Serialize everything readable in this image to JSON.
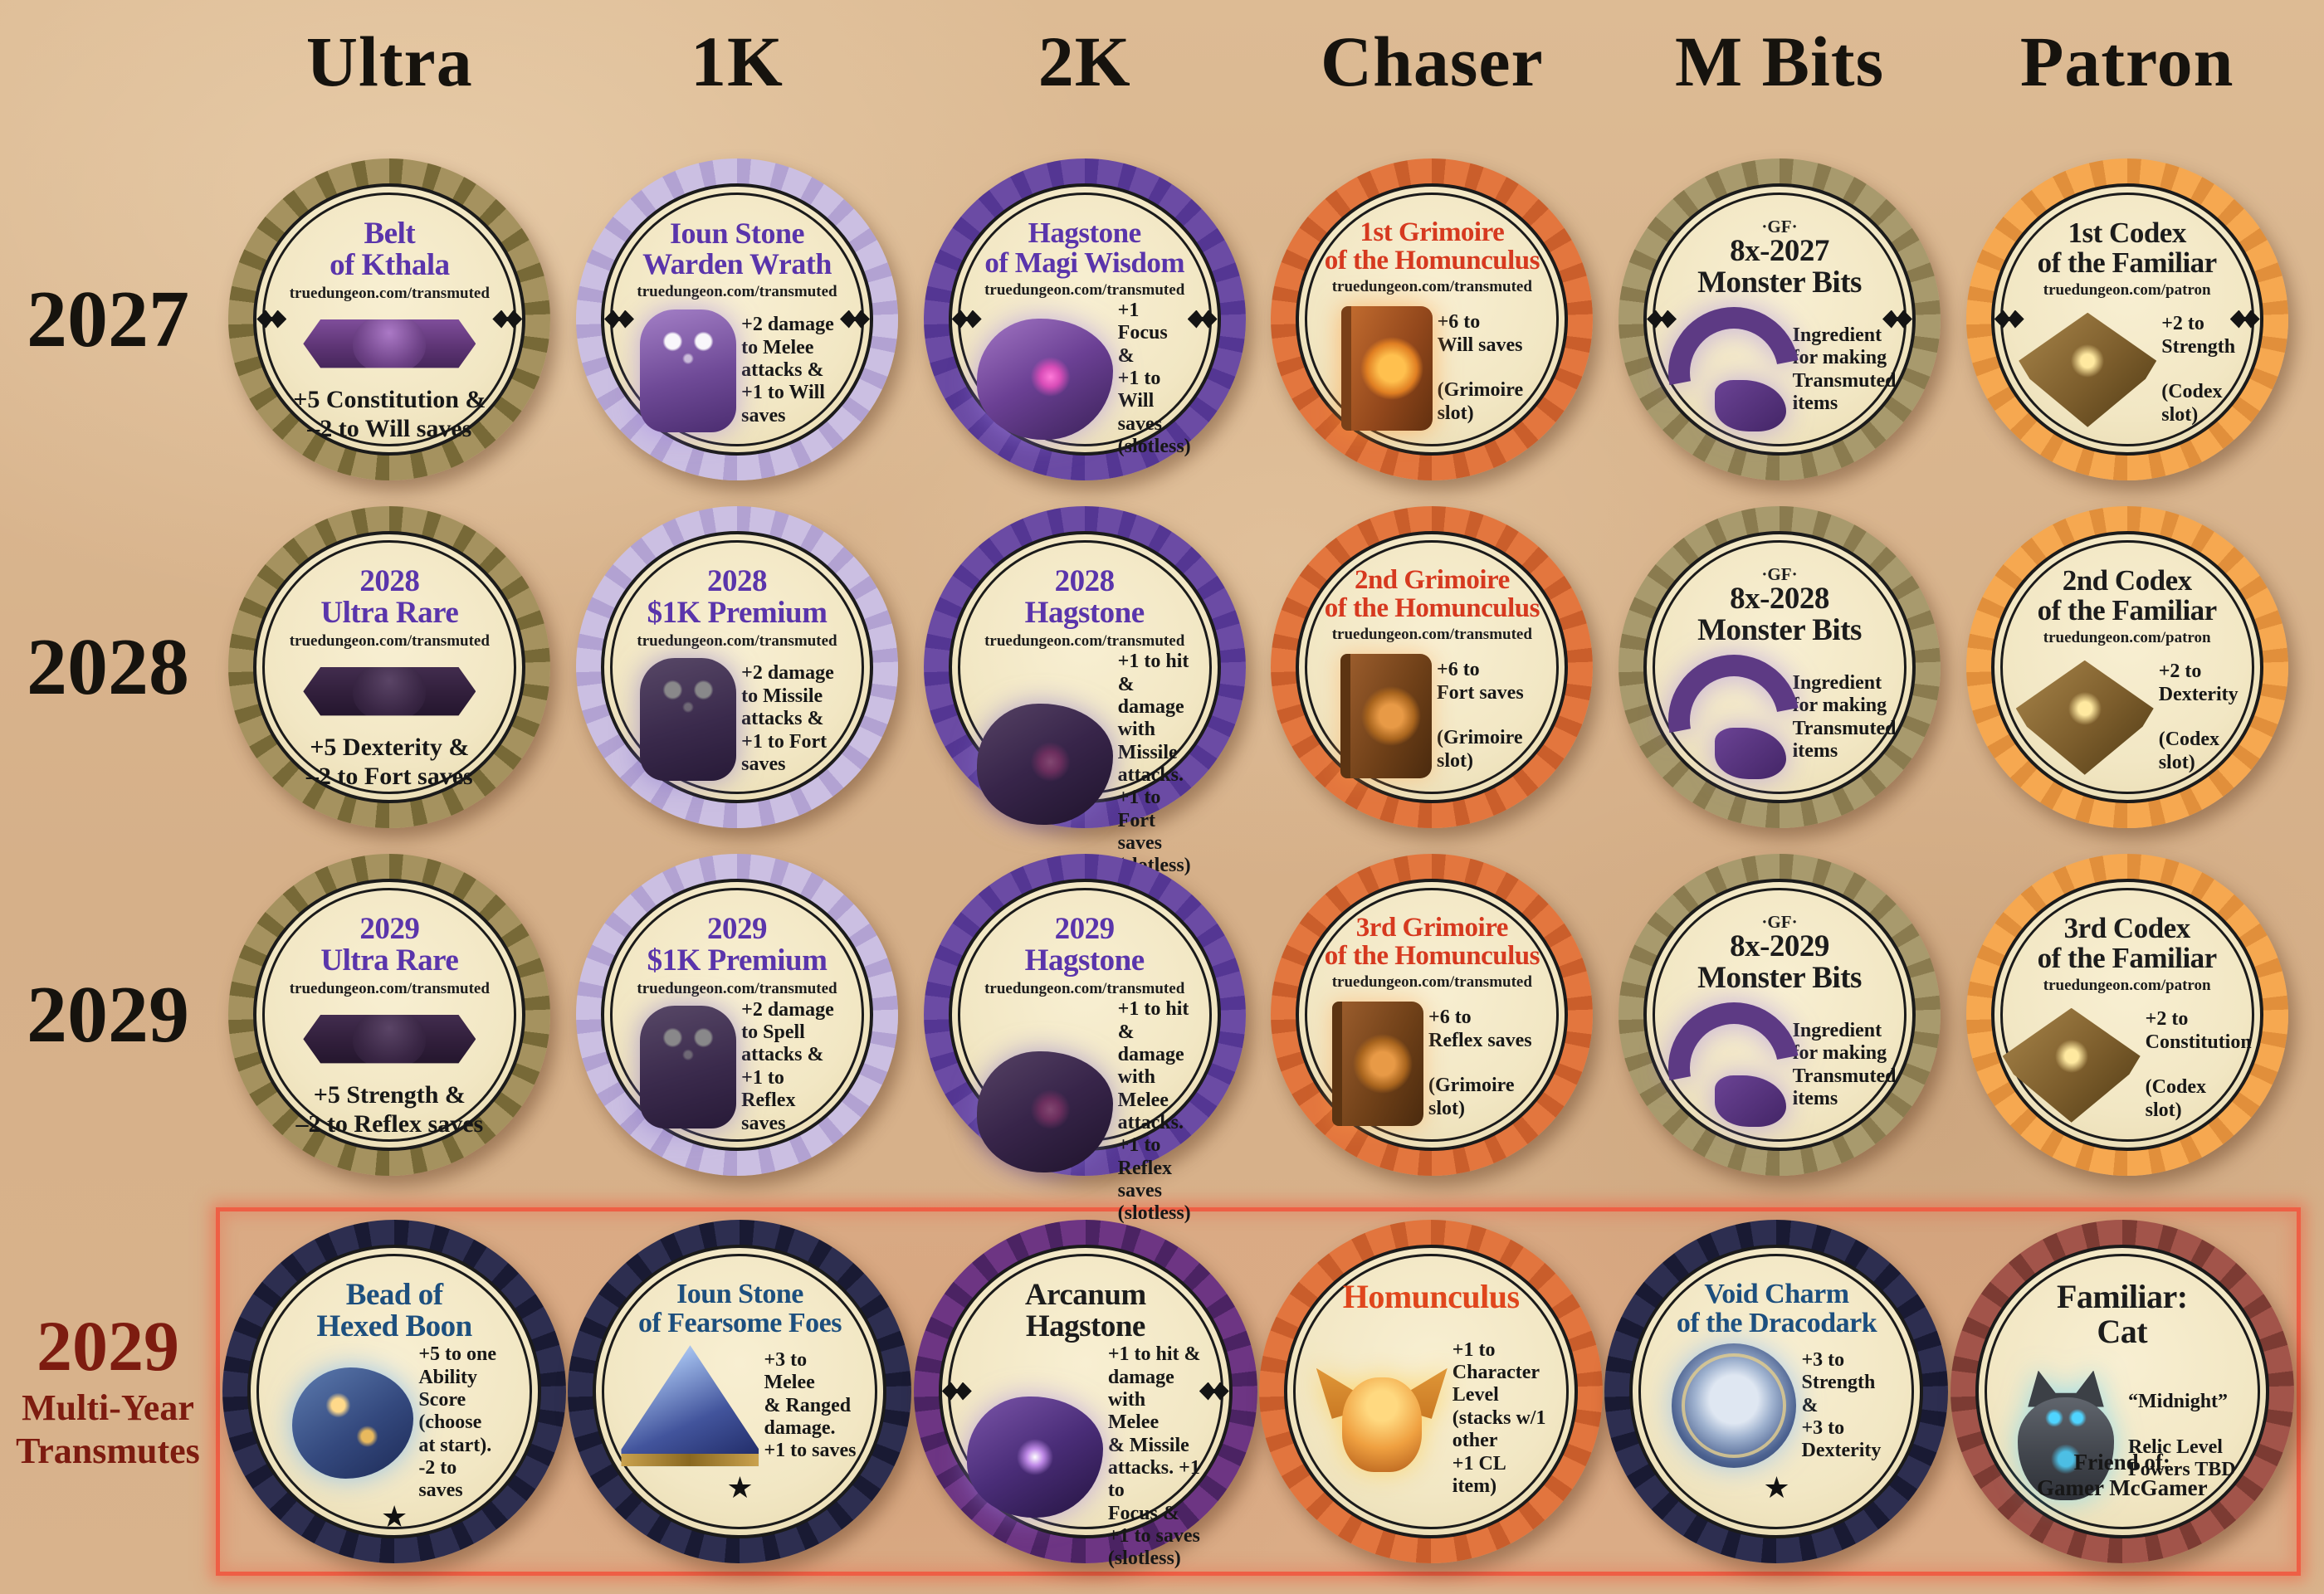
{
  "columns": [
    "Ultra",
    "1K",
    "2K",
    "Chaser",
    "M Bits",
    "Patron"
  ],
  "rows": [
    {
      "label": "2027",
      "label_color": "#16130e"
    },
    {
      "label": "2028",
      "label_color": "#16130e"
    },
    {
      "label": "2029",
      "label_color": "#16130e"
    },
    {
      "label": "2029",
      "sublabel": "Multi-Year\nTransmutes",
      "label_color": "#7d1c10",
      "highlight_border": "#ee5f45"
    }
  ],
  "tokens": [
    {
      "row": 0,
      "col": 0,
      "rim": "#a5925f",
      "dot": "#776937",
      "title": "Belt\nof Kthala",
      "title_color": "#5a35ab",
      "title_size": 37,
      "url": "truedungeon.com/transmuted",
      "top_mark": "",
      "art": "belt",
      "art_name": "octopus-belt-art",
      "layout": "center",
      "effect": "+5 Constitution &\n–2 to Will saves",
      "star": false,
      "footer": "",
      "flourish": true
    },
    {
      "row": 0,
      "col": 1,
      "rim": "#cbbfe2",
      "dot": "#b2a2d2",
      "title": "Ioun Stone\nWarden Wrath",
      "title_color": "#5a35ab",
      "title_size": 36,
      "url": "truedungeon.com/transmuted",
      "top_mark": "",
      "art": "owl",
      "art_name": "owl-ioun-stone-art",
      "layout": "side",
      "effect": "+2 damage\nto Melee\nattacks &\n+1 to Will\nsaves",
      "star": false,
      "footer": "",
      "flourish": true
    },
    {
      "row": 0,
      "col": 2,
      "rim": "#6b4ba4",
      "dot": "#543693",
      "title": "Hagstone\nof Magi Wisdom",
      "title_color": "#5a35ab",
      "title_size": 35,
      "url": "truedungeon.com/transmuted",
      "top_mark": "",
      "art": "rock",
      "art_name": "hagstone-art",
      "layout": "side",
      "effect": "+1 Focus\n&\n+1 to Will\nsaves\n(slotless)",
      "star": false,
      "footer": "",
      "flourish": true
    },
    {
      "row": 0,
      "col": 3,
      "rim": "#e3763e",
      "dot": "#ca5e2b",
      "title": "1st Grimoire\nof the Homunculus",
      "title_color": "#d6391f",
      "title_size": 33,
      "url": "truedungeon.com/transmuted",
      "top_mark": "",
      "art": "book",
      "art_name": "grimoire-book-art",
      "layout": "side",
      "effect": "+6 to\nWill saves\n\n(Grimoire\nslot)",
      "star": false,
      "footer": "",
      "flourish": false
    },
    {
      "row": 0,
      "col": 4,
      "rim": "#a89a6d",
      "dot": "#8a7b4f",
      "title": "8x-2027\nMonster Bits",
      "title_color": "#1c1c1c",
      "title_size": 37,
      "url": "",
      "top_mark": "·GF·",
      "art": "tentacle",
      "art_name": "tentacle-art",
      "layout": "side",
      "effect": "Ingredient\nfor making\nTransmuted\nitems",
      "star": false,
      "footer": "",
      "flourish": true
    },
    {
      "row": 0,
      "col": 5,
      "rim": "#f6a850",
      "dot": "#e18f3b",
      "title": "1st Codex\nof the Familiar",
      "title_color": "#1c1c1c",
      "title_size": 35,
      "url": "truedungeon.com/patron",
      "top_mark": "",
      "art": "codex",
      "art_name": "codex-book-art",
      "layout": "side",
      "effect": "+2 to\nStrength\n\n(Codex\nslot)",
      "star": false,
      "footer": "",
      "flourish": true
    },
    {
      "row": 1,
      "col": 0,
      "rim": "#a5925f",
      "dot": "#776937",
      "title": "2028\nUltra Rare",
      "title_color": "#5a35ab",
      "title_size": 37,
      "url": "truedungeon.com/transmuted",
      "top_mark": "",
      "art": "belt dark",
      "art_name": "octopus-belt-art",
      "layout": "center",
      "effect": "+5 Dexterity &\n–2 to Fort saves",
      "star": false,
      "footer": "",
      "flourish": false
    },
    {
      "row": 1,
      "col": 1,
      "rim": "#cbbfe2",
      "dot": "#b2a2d2",
      "title": "2028\n$1K Premium",
      "title_color": "#5a35ab",
      "title_size": 37,
      "url": "truedungeon.com/transmuted",
      "top_mark": "",
      "art": "owl dark",
      "art_name": "owl-ioun-stone-art",
      "layout": "side",
      "effect": "+2 damage\nto Missile\nattacks &\n+1 to Fort\nsaves",
      "star": false,
      "footer": "",
      "flourish": false
    },
    {
      "row": 1,
      "col": 2,
      "rim": "#6b4ba4",
      "dot": "#543693",
      "title": "2028\nHagstone",
      "title_color": "#5a35ab",
      "title_size": 37,
      "url": "truedungeon.com/transmuted",
      "top_mark": "",
      "art": "rock dark",
      "art_name": "hagstone-art",
      "layout": "side",
      "effect": "+1 to hit &\ndamage with\nMissile\nattacks.\n+1 to Fort\nsaves\n(slotless)",
      "star": false,
      "footer": "",
      "flourish": false
    },
    {
      "row": 1,
      "col": 3,
      "rim": "#e3763e",
      "dot": "#ca5e2b",
      "title": "2nd Grimoire\nof the Homunculus",
      "title_color": "#d6391f",
      "title_size": 33,
      "url": "truedungeon.com/transmuted",
      "top_mark": "",
      "art": "book brown",
      "art_name": "grimoire-book-art",
      "layout": "side",
      "effect": "+6 to\nFort saves\n\n(Grimoire\nslot)",
      "star": false,
      "footer": "",
      "flourish": false
    },
    {
      "row": 1,
      "col": 4,
      "rim": "#a89a6d",
      "dot": "#8a7b4f",
      "title": "8x-2028\nMonster Bits",
      "title_color": "#1c1c1c",
      "title_size": 37,
      "url": "",
      "top_mark": "·GF·",
      "art": "tentacle",
      "art_name": "tentacle-art",
      "layout": "side",
      "effect": "Ingredient\nfor making\nTransmuted\nitems",
      "star": false,
      "footer": "",
      "flourish": false
    },
    {
      "row": 1,
      "col": 5,
      "rim": "#f6a850",
      "dot": "#e18f3b",
      "title": "2nd Codex\nof the Familiar",
      "title_color": "#1c1c1c",
      "title_size": 35,
      "url": "truedungeon.com/patron",
      "top_mark": "",
      "art": "codex",
      "art_name": "codex-book-art",
      "layout": "side",
      "effect": "+2 to\nDexterity\n\n(Codex\nslot)",
      "star": false,
      "footer": "",
      "flourish": false
    },
    {
      "row": 2,
      "col": 0,
      "rim": "#a5925f",
      "dot": "#776937",
      "title": "2029\nUltra Rare",
      "title_color": "#5a35ab",
      "title_size": 37,
      "url": "truedungeon.com/transmuted",
      "top_mark": "",
      "art": "belt dark",
      "art_name": "octopus-belt-art",
      "layout": "center",
      "effect": "+5 Strength &\n–2 to Reflex saves",
      "star": false,
      "footer": "",
      "flourish": false
    },
    {
      "row": 2,
      "col": 1,
      "rim": "#cbbfe2",
      "dot": "#b2a2d2",
      "title": "2029\n$1K Premium",
      "title_color": "#5a35ab",
      "title_size": 37,
      "url": "truedungeon.com/transmuted",
      "top_mark": "",
      "art": "owl dark",
      "art_name": "owl-ioun-stone-art",
      "layout": "side",
      "effect": "+2 damage\nto Spell\nattacks &\n+1 to\nReflex\nsaves",
      "star": false,
      "footer": "",
      "flourish": false
    },
    {
      "row": 2,
      "col": 2,
      "rim": "#6b4ba4",
      "dot": "#543693",
      "title": "2029\nHagstone",
      "title_color": "#5a35ab",
      "title_size": 37,
      "url": "truedungeon.com/transmuted",
      "top_mark": "",
      "art": "rock dark",
      "art_name": "hagstone-art",
      "layout": "side",
      "effect": "+1 to hit &\ndamage with\nMelee\nattacks.\n+1 to Reflex\nsaves\n(slotless)",
      "star": false,
      "footer": "",
      "flourish": false
    },
    {
      "row": 2,
      "col": 3,
      "rim": "#e3763e",
      "dot": "#ca5e2b",
      "title": "3rd Grimoire\nof the Homunculus",
      "title_color": "#d6391f",
      "title_size": 33,
      "url": "truedungeon.com/transmuted",
      "top_mark": "",
      "art": "book brown",
      "art_name": "grimoire-book-art",
      "layout": "side",
      "effect": "+6 to\nReflex saves\n\n(Grimoire\nslot)",
      "star": false,
      "footer": "",
      "flourish": false
    },
    {
      "row": 2,
      "col": 4,
      "rim": "#a89a6d",
      "dot": "#8a7b4f",
      "title": "8x-2029\nMonster Bits",
      "title_color": "#1c1c1c",
      "title_size": 37,
      "url": "",
      "top_mark": "·GF·",
      "art": "tentacle",
      "art_name": "tentacle-art",
      "layout": "side",
      "effect": "Ingredient\nfor making\nTransmuted\nitems",
      "star": false,
      "footer": "",
      "flourish": false
    },
    {
      "row": 2,
      "col": 5,
      "rim": "#f6a850",
      "dot": "#e18f3b",
      "title": "3rd Codex\nof the Familiar",
      "title_color": "#1c1c1c",
      "title_size": 35,
      "url": "truedungeon.com/patron",
      "top_mark": "",
      "art": "codex",
      "art_name": "codex-book-art",
      "layout": "side",
      "effect": "+2 to\nConstitution\n\n(Codex\nslot)",
      "star": false,
      "footer": "",
      "flourish": false
    },
    {
      "row": 3,
      "col": 0,
      "rim": "#2d2e50",
      "dot": "#191a33",
      "title": "Bead of\nHexed Boon",
      "title_color": "#1d4f7e",
      "title_size": 37,
      "url": "",
      "top_mark": "",
      "art": "bead",
      "art_name": "hexed-bead-art",
      "layout": "side",
      "effect": "+5 to one\nAbility\nScore\n(choose\nat start).\n-2 to\nsaves",
      "star": true,
      "footer": "",
      "flourish": false
    },
    {
      "row": 3,
      "col": 1,
      "rim": "#2d2e50",
      "dot": "#191a33",
      "title": "Ioun Stone\nof Fearsome Foes",
      "title_color": "#1d4f7e",
      "title_size": 34,
      "url": "",
      "top_mark": "",
      "art": "pyramid",
      "art_name": "pyramid-ioun-stone-art",
      "layout": "side",
      "effect": "+3 to Melee\n& Ranged\ndamage.\n+1 to saves",
      "star": true,
      "footer": "",
      "flourish": false
    },
    {
      "row": 3,
      "col": 2,
      "rim": "#6d3583",
      "dot": "#4b2363",
      "title": "Arcanum\nHagstone",
      "title_color": "#1c1c1c",
      "title_size": 37,
      "url": "",
      "top_mark": "",
      "art": "rock arcanum",
      "art_name": "arcanum-hagstone-art",
      "layout": "side",
      "effect": "+1 to hit &\ndamage with\nMelee\n& Missile\nattacks. +1 to\nFocus &\n+1 to saves\n(slotless)",
      "star": false,
      "footer": "",
      "flourish": true
    },
    {
      "row": 3,
      "col": 3,
      "rim": "#e2753e",
      "dot": "#c95d2b",
      "title": "Homunculus",
      "title_color": "#e0461c",
      "title_size": 40,
      "url": "",
      "top_mark": "",
      "art": "homunculus",
      "art_name": "homunculus-art",
      "layout": "side",
      "effect": "+1 to\nCharacter\nLevel\n(stacks w/1\nother\n+1 CL\nitem)",
      "star": false,
      "footer": "",
      "flourish": false
    },
    {
      "row": 3,
      "col": 4,
      "rim": "#2d2e50",
      "dot": "#191a33",
      "title": "Void Charm\nof the Dracodark",
      "title_color": "#1d4f7e",
      "title_size": 34,
      "url": "",
      "top_mark": "",
      "art": "voidcharm",
      "art_name": "void-charm-art",
      "layout": "side",
      "effect": "+3 to\nStrength\n&\n+3 to\nDexterity",
      "star": true,
      "footer": "",
      "flourish": false
    },
    {
      "row": 3,
      "col": 5,
      "rim": "#a2544a",
      "dot": "#7c3b33",
      "title": "Familiar:\nCat",
      "title_color": "#1c1c1c",
      "title_size": 40,
      "url": "",
      "top_mark": "",
      "art": "cat",
      "art_name": "cat-art",
      "layout": "side",
      "effect": "“Midnight”\n\nRelic Level\nPowers TBD",
      "star": false,
      "footer": "Friend of:\nGamer McGamer",
      "flourish": false
    }
  ]
}
